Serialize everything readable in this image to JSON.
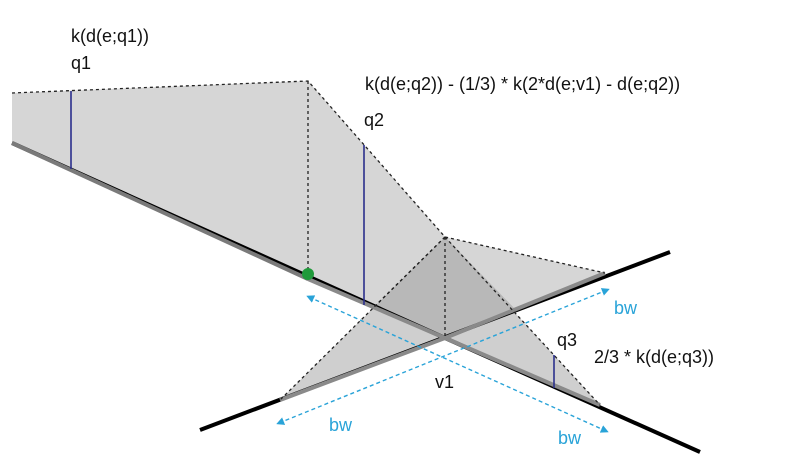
{
  "labels": {
    "kernel_q1": "k(d(e;q1))",
    "q1": "q1",
    "kernel_q2": "k(d(e;q2)) - (1/3) * k(2*d(e;v1) - d(e;q2))",
    "q2": "q2",
    "q3": "q3",
    "kernel_q3": "2/3 * k(d(e;q3))",
    "v1": "v1",
    "bw_right": "bw",
    "bw_left": "bw",
    "bw_bottom": "bw"
  },
  "colors": {
    "road": "#000000",
    "road_highlight": "#8a8a8a",
    "fill_light": "#d6d6d6",
    "fill_dark": "#b8b8b8",
    "dotted": "#222222",
    "stem": "#2b2f8c",
    "bandwidth_arrow": "#29a3d8",
    "point": "#1f9a3a"
  }
}
